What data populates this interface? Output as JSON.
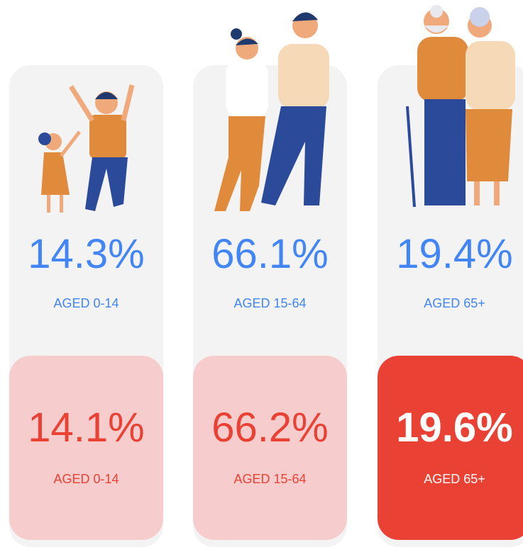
{
  "columns": [
    {
      "top": {
        "value": "14.3%",
        "label": "AGED 0-14"
      },
      "bottom": {
        "value": "14.1%",
        "label": "AGED 0-14"
      }
    },
    {
      "top": {
        "value": "66.1%",
        "label": "AGED 15-64"
      },
      "bottom": {
        "value": "66.2%",
        "label": "AGED 15-64"
      }
    },
    {
      "top": {
        "value": "19.4%",
        "label": "AGED 65+"
      },
      "bottom": {
        "value": "19.6%",
        "label": "AGED 65+"
      }
    }
  ]
}
